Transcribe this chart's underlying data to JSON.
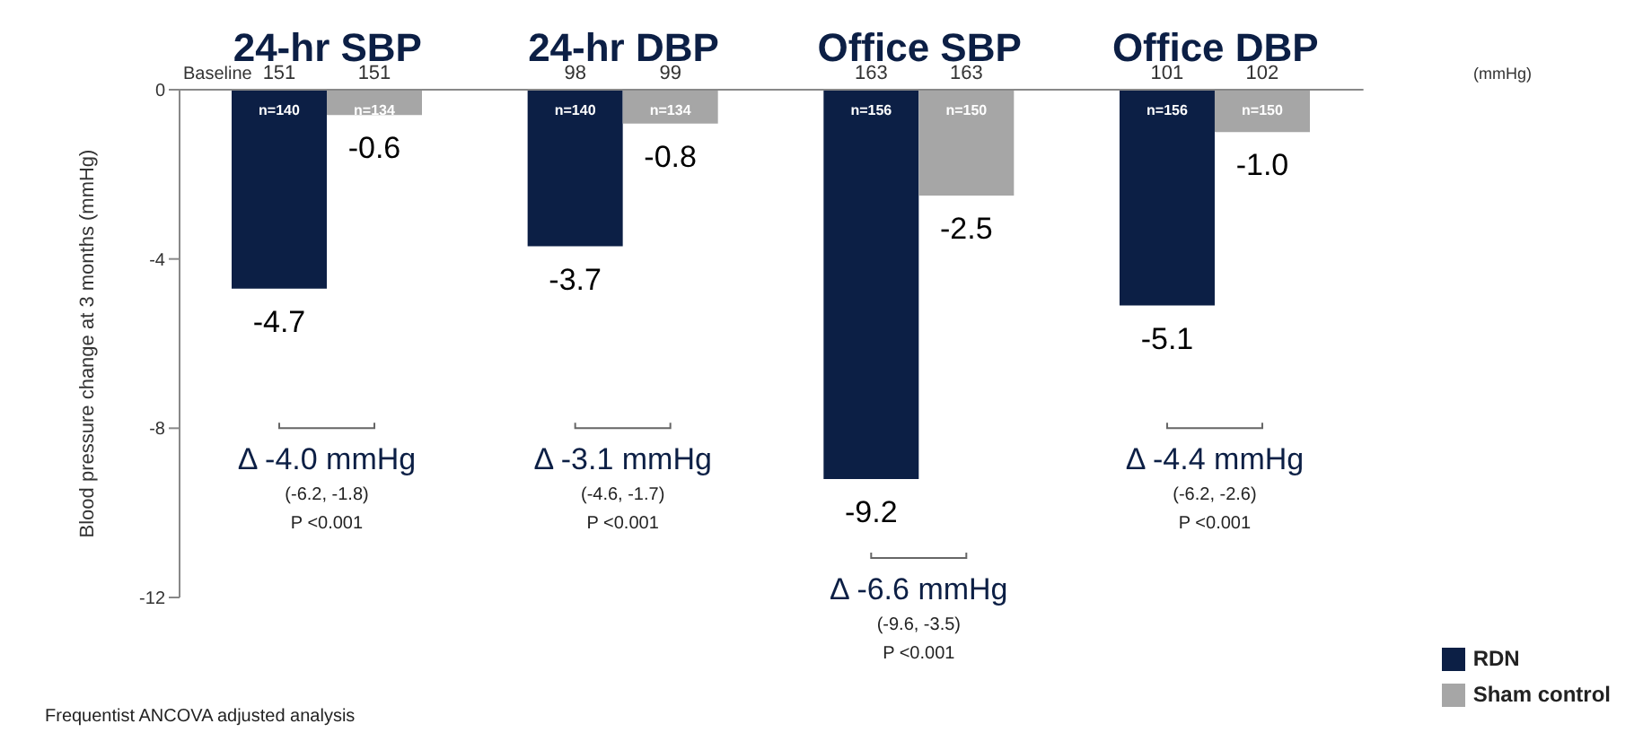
{
  "chart_data": {
    "type": "bar",
    "ylabel": "Blood pressure change at 3 months (mmHg)",
    "categories": [
      "24-hr SBP",
      "24-hr DBP",
      "Office SBP",
      "Office DBP"
    ],
    "series": [
      {
        "name": "RDN",
        "color": "#0c1f45",
        "values": [
          -4.7,
          -3.7,
          -9.2,
          -5.1
        ],
        "value_labels": [
          "-4.7",
          "-3.7",
          "-9.2",
          "-5.1"
        ]
      },
      {
        "name": "Sham control",
        "color": "#a6a6a6",
        "values": [
          -0.6,
          -0.8,
          -2.5,
          -1.0
        ],
        "value_labels": [
          "-0.6",
          "-0.8",
          "-2.5",
          "-1.0"
        ]
      }
    ],
    "ylim": [
      -12,
      0
    ],
    "yticks": [
      0,
      -4,
      -8,
      -12
    ],
    "legend": "bottom right",
    "annotations": [
      "Baseline",
      "151",
      "151",
      "98",
      "99",
      "163",
      "163",
      "101",
      "102",
      "(mmHg)",
      "n=140",
      "n=134",
      "n=140",
      "n=134",
      "n=156",
      "n=150",
      "n=156",
      "n=150",
      "Δ -4.0 mmHg",
      "(-6.2, -1.8)",
      "P <0.001",
      "Δ -3.1 mmHg",
      "(-4.6, -1.7)",
      "P <0.001",
      "Δ -6.6 mmHg",
      "(-9.6, -3.5)",
      "P <0.001",
      "Δ -4.4 mmHg",
      "(-6.2, -2.6)",
      "P <0.001",
      "Frequentist ANCOVA adjusted analysis"
    ]
  }
}
